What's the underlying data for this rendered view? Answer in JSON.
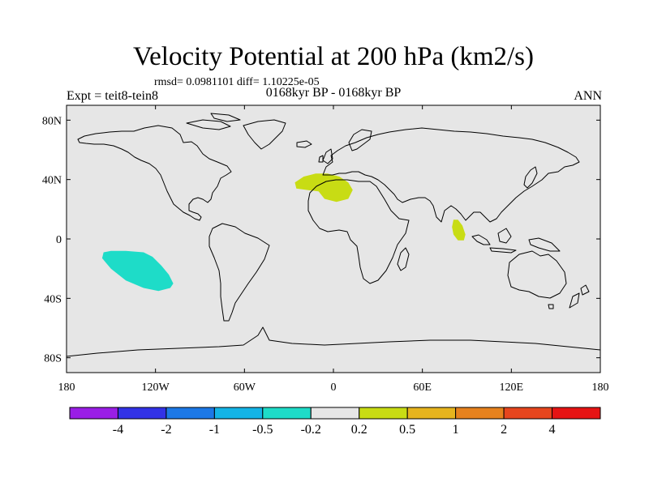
{
  "title": "Velocity Potential at 200 hPa (km2/s)",
  "stats": "rmsd= 0.0981101 diff= 1.10225e-05",
  "left_label": "Expt = teit8-tein8",
  "center_label": "0168kyr BP - 0168kyr BP",
  "right_label": "ANN",
  "lat_ticks": [
    {
      "label": "80N",
      "lat": 80
    },
    {
      "label": "40N",
      "lat": 40
    },
    {
      "label": "0",
      "lat": 0
    },
    {
      "label": "40S",
      "lat": -40
    },
    {
      "label": "80S",
      "lat": -80
    }
  ],
  "lon_ticks": [
    {
      "label": "180",
      "lon": -180
    },
    {
      "label": "120W",
      "lon": -120
    },
    {
      "label": "60W",
      "lon": -60
    },
    {
      "label": "0",
      "lon": 0
    },
    {
      "label": "60E",
      "lon": 60
    },
    {
      "label": "120E",
      "lon": 120
    },
    {
      "label": "180",
      "lon": 180
    }
  ],
  "colorbar": {
    "colors": [
      "#9a1ee6",
      "#3232e6",
      "#1c78e6",
      "#14b4e6",
      "#1edcc8",
      "#e6e6e6",
      "#c8dc14",
      "#e6b41e",
      "#e6821e",
      "#e6461e",
      "#e61414"
    ],
    "labels": [
      "-4",
      "-2",
      "-1",
      "-0.5",
      "-0.2",
      "0.2",
      "0.5",
      "1",
      "2",
      "4"
    ]
  },
  "anomalies": [
    {
      "name": "south-pacific-negative",
      "color": "#1edcc8",
      "points": [
        [
          -155,
          -9
        ],
        [
          -150,
          -8
        ],
        [
          -140,
          -8
        ],
        [
          -128,
          -9
        ],
        [
          -122,
          -12
        ],
        [
          -116,
          -18
        ],
        [
          -111,
          -24
        ],
        [
          -108,
          -30
        ],
        [
          -110,
          -33
        ],
        [
          -118,
          -35
        ],
        [
          -128,
          -33
        ],
        [
          -140,
          -28
        ],
        [
          -150,
          -20
        ],
        [
          -156,
          -13
        ]
      ]
    },
    {
      "name": "north-africa-positive",
      "color": "#c8dc14",
      "points": [
        [
          -26,
          38
        ],
        [
          -20,
          42
        ],
        [
          -12,
          44
        ],
        [
          -4,
          44
        ],
        [
          4,
          42
        ],
        [
          10,
          38
        ],
        [
          13,
          33
        ],
        [
          10,
          27
        ],
        [
          2,
          25
        ],
        [
          -6,
          27
        ],
        [
          -10,
          32
        ],
        [
          -18,
          33
        ],
        [
          -25,
          34
        ]
      ]
    },
    {
      "name": "indian-ocean-positive",
      "color": "#c8dc14",
      "points": [
        [
          81,
          13
        ],
        [
          84,
          13
        ],
        [
          87,
          9
        ],
        [
          89,
          3
        ],
        [
          88,
          -1
        ],
        [
          84,
          -1
        ],
        [
          81,
          3
        ],
        [
          80,
          8
        ]
      ]
    }
  ]
}
